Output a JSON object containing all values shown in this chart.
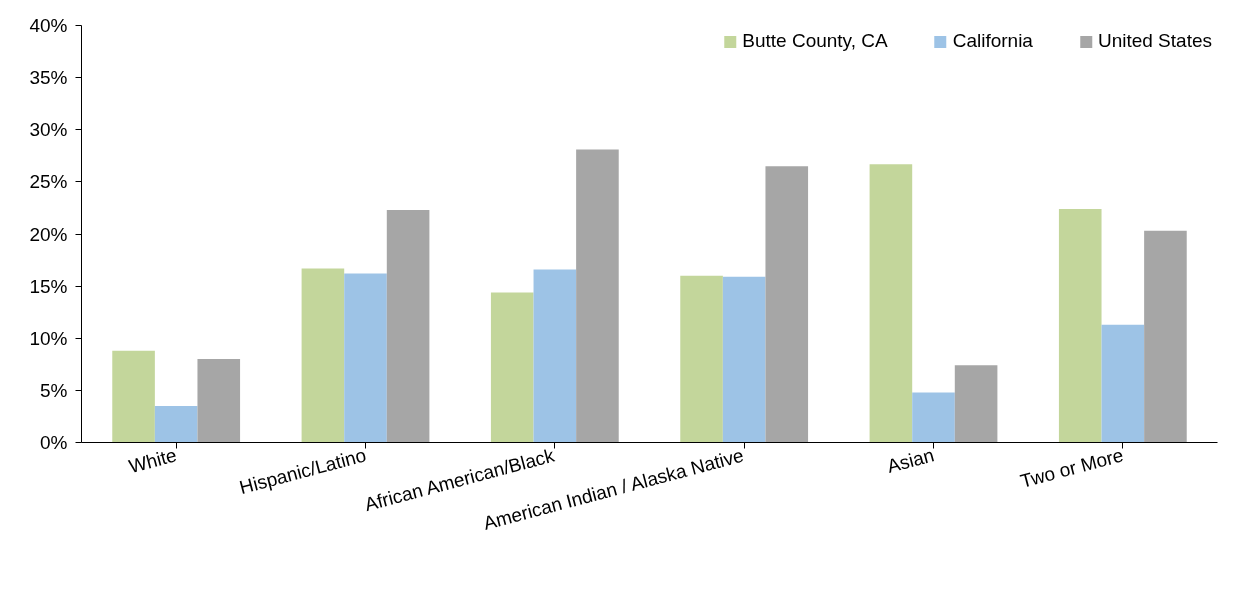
{
  "chart_data": {
    "type": "bar",
    "categories": [
      "White",
      "Hispanic/Latino",
      "African American/Black",
      "American Indian / Alaska Native",
      "Asian",
      "Two or More"
    ],
    "series": [
      {
        "name": "Butte County, CA",
        "color": "#c3d69b",
        "values": [
          8.8,
          16.7,
          14.4,
          16.0,
          26.7,
          22.4
        ]
      },
      {
        "name": "California",
        "color": "#9dc3e6",
        "values": [
          3.5,
          16.2,
          16.6,
          15.9,
          4.8,
          11.3
        ]
      },
      {
        "name": "United States",
        "color": "#a6a6a6",
        "values": [
          8.0,
          22.3,
          28.1,
          26.5,
          7.4,
          20.3
        ]
      }
    ],
    "ylim": [
      0,
      40
    ],
    "yticks": [
      {
        "value": 0,
        "label": "0%"
      },
      {
        "value": 5,
        "label": "5%"
      },
      {
        "value": 10,
        "label": "10%"
      },
      {
        "value": 15,
        "label": "15%"
      },
      {
        "value": 20,
        "label": "20%"
      },
      {
        "value": 25,
        "label": "25%"
      },
      {
        "value": 30,
        "label": "30%"
      },
      {
        "value": 35,
        "label": "35%"
      },
      {
        "value": 40,
        "label": "40%"
      }
    ],
    "legend": "top right"
  }
}
